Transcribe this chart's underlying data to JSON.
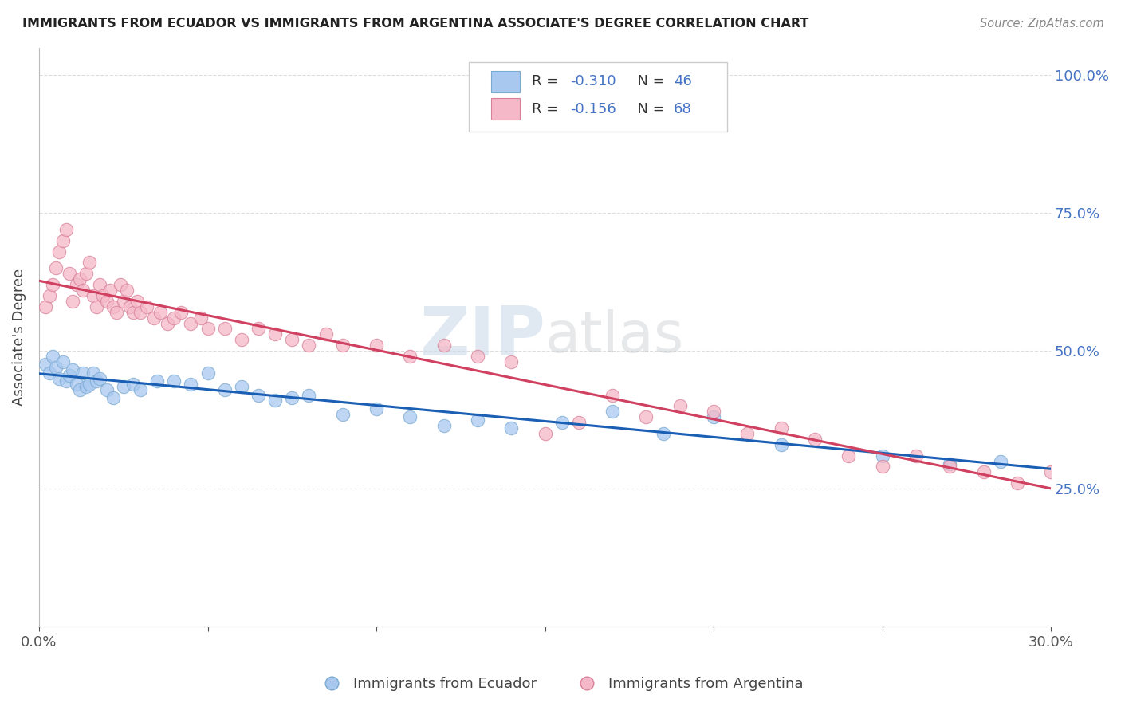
{
  "title": "IMMIGRANTS FROM ECUADOR VS IMMIGRANTS FROM ARGENTINA ASSOCIATE'S DEGREE CORRELATION CHART",
  "source": "Source: ZipAtlas.com",
  "ylabel": "Associate's Degree",
  "yticks": [
    "25.0%",
    "50.0%",
    "75.0%",
    "100.0%"
  ],
  "ytick_vals": [
    0.25,
    0.5,
    0.75,
    1.0
  ],
  "xmin": 0.0,
  "xmax": 0.3,
  "ymin": 0.0,
  "ymax": 1.05,
  "ecuador_color": "#a8c8f0",
  "ecuador_edge": "#7aaad0",
  "argentina_color": "#f5b8c8",
  "argentina_edge": "#d88098",
  "trendline_ecuador_color": "#1a5fb4",
  "trendline_argentina_color": "#d04060",
  "legend_label_ecuador": "Immigrants from Ecuador",
  "legend_label_argentina": "Immigrants from Argentina",
  "R_ecuador": "-0.310",
  "N_ecuador": "46",
  "R_argentina": "-0.156",
  "N_argentina": "68",
  "watermark_zip": "ZIP",
  "watermark_atlas": "atlas",
  "background_color": "#ffffff",
  "grid_color": "#dddddd",
  "eq_intercept": 0.472,
  "eq_slope": -0.72,
  "ar_intercept": 0.575,
  "ar_slope": -0.52,
  "ecuador_x": [
    0.002,
    0.003,
    0.004,
    0.005,
    0.006,
    0.007,
    0.008,
    0.009,
    0.01,
    0.011,
    0.012,
    0.013,
    0.014,
    0.015,
    0.016,
    0.017,
    0.018,
    0.02,
    0.022,
    0.025,
    0.028,
    0.03,
    0.035,
    0.04,
    0.045,
    0.05,
    0.055,
    0.06,
    0.065,
    0.07,
    0.075,
    0.08,
    0.09,
    0.1,
    0.11,
    0.12,
    0.13,
    0.14,
    0.155,
    0.17,
    0.185,
    0.2,
    0.22,
    0.25,
    0.27,
    0.285
  ],
  "ecuador_y": [
    0.475,
    0.46,
    0.49,
    0.47,
    0.45,
    0.48,
    0.445,
    0.455,
    0.465,
    0.44,
    0.43,
    0.46,
    0.435,
    0.44,
    0.46,
    0.445,
    0.45,
    0.43,
    0.415,
    0.435,
    0.44,
    0.43,
    0.445,
    0.445,
    0.44,
    0.46,
    0.43,
    0.435,
    0.42,
    0.41,
    0.415,
    0.42,
    0.385,
    0.395,
    0.38,
    0.365,
    0.375,
    0.36,
    0.37,
    0.39,
    0.35,
    0.38,
    0.33,
    0.31,
    0.295,
    0.3
  ],
  "argentina_x": [
    0.002,
    0.003,
    0.004,
    0.005,
    0.006,
    0.007,
    0.008,
    0.009,
    0.01,
    0.011,
    0.012,
    0.013,
    0.014,
    0.015,
    0.016,
    0.017,
    0.018,
    0.019,
    0.02,
    0.021,
    0.022,
    0.023,
    0.024,
    0.025,
    0.026,
    0.027,
    0.028,
    0.029,
    0.03,
    0.032,
    0.034,
    0.036,
    0.038,
    0.04,
    0.042,
    0.045,
    0.048,
    0.05,
    0.055,
    0.06,
    0.065,
    0.07,
    0.075,
    0.08,
    0.085,
    0.09,
    0.1,
    0.11,
    0.12,
    0.13,
    0.14,
    0.15,
    0.16,
    0.17,
    0.18,
    0.19,
    0.2,
    0.21,
    0.22,
    0.23,
    0.24,
    0.25,
    0.26,
    0.27,
    0.28,
    0.29,
    0.3,
    0.31
  ],
  "argentina_y": [
    0.58,
    0.6,
    0.62,
    0.65,
    0.68,
    0.7,
    0.72,
    0.64,
    0.59,
    0.62,
    0.63,
    0.61,
    0.64,
    0.66,
    0.6,
    0.58,
    0.62,
    0.6,
    0.59,
    0.61,
    0.58,
    0.57,
    0.62,
    0.59,
    0.61,
    0.58,
    0.57,
    0.59,
    0.57,
    0.58,
    0.56,
    0.57,
    0.55,
    0.56,
    0.57,
    0.55,
    0.56,
    0.54,
    0.54,
    0.52,
    0.54,
    0.53,
    0.52,
    0.51,
    0.53,
    0.51,
    0.51,
    0.49,
    0.51,
    0.49,
    0.48,
    0.35,
    0.37,
    0.42,
    0.38,
    0.4,
    0.39,
    0.35,
    0.36,
    0.34,
    0.31,
    0.29,
    0.31,
    0.29,
    0.28,
    0.26,
    0.28,
    0.29
  ]
}
